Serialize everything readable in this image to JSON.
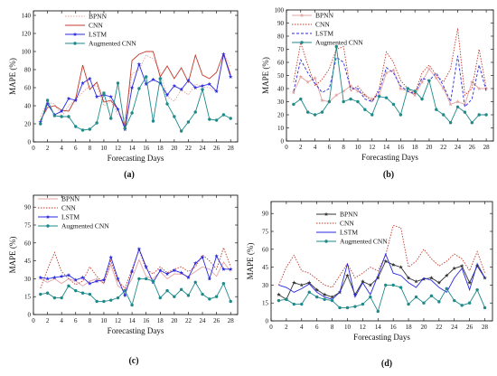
{
  "colors": {
    "BPNN": "#e3a3a3",
    "CNN": "#c0392b",
    "LSTM": "#2a2ae0",
    "Augmented CNN": "#1f8a8a",
    "BPNN_d": "#333333"
  },
  "chart_data": [
    {
      "type": "line",
      "panel": "(a)",
      "xlabel": "Forecasting Days",
      "ylabel": "MAPE (%)",
      "xlim": [
        0,
        29
      ],
      "ylim": [
        0,
        145
      ],
      "xticks": [
        0,
        2,
        4,
        6,
        8,
        10,
        12,
        14,
        16,
        18,
        20,
        22,
        24,
        26,
        28
      ],
      "yticks": [
        0,
        20,
        40,
        60,
        80,
        100,
        120,
        140
      ],
      "legend": "top-left",
      "series": [
        {
          "name": "BPNN",
          "style": "dotted",
          "marker": "none",
          "values": [
            28,
            44,
            42,
            28,
            40,
            47,
            55,
            62,
            62,
            40,
            45,
            30,
            25,
            75,
            80,
            96,
            92,
            78,
            50,
            45,
            58,
            52,
            64,
            61,
            60,
            55,
            97,
            84
          ]
        },
        {
          "name": "CNN",
          "style": "solid",
          "marker": "none",
          "values": [
            24,
            38,
            40,
            35,
            34,
            48,
            85,
            58,
            66,
            44,
            46,
            36,
            16,
            90,
            97,
            100,
            100,
            72,
            84,
            70,
            82,
            66,
            96,
            74,
            70,
            77,
            98,
            74
          ]
        },
        {
          "name": "LSTM",
          "style": "solid",
          "marker": "star",
          "values": [
            22,
            42,
            30,
            34,
            48,
            46,
            65,
            70,
            50,
            52,
            50,
            36,
            14,
            60,
            86,
            64,
            69,
            65,
            52,
            62,
            58,
            68,
            60,
            62,
            64,
            56,
            97,
            72
          ]
        },
        {
          "name": "Augmented CNN",
          "style": "solid",
          "marker": "circle",
          "values": [
            20,
            46,
            29,
            28,
            28,
            17,
            13,
            14,
            21,
            54,
            26,
            65,
            15,
            32,
            59,
            72,
            23,
            70,
            42,
            28,
            12,
            22,
            33,
            58,
            25,
            24,
            30,
            26
          ]
        }
      ],
      "x": [
        1,
        2,
        3,
        4,
        5,
        6,
        7,
        8,
        9,
        10,
        11,
        12,
        13,
        14,
        15,
        16,
        17,
        18,
        19,
        20,
        21,
        22,
        23,
        24,
        25,
        26,
        27,
        28
      ]
    },
    {
      "type": "line",
      "panel": "(b)",
      "xlabel": "Forecasting Days",
      "ylabel": "MAPE (%)",
      "xlim": [
        0,
        29
      ],
      "ylim": [
        0,
        100
      ],
      "xticks": [
        0,
        2,
        4,
        6,
        8,
        10,
        12,
        14,
        16,
        18,
        20,
        22,
        24,
        26,
        28
      ],
      "yticks": [
        0,
        10,
        20,
        30,
        40,
        50,
        60,
        70,
        80,
        90,
        100
      ],
      "legend": "top-left",
      "series": [
        {
          "name": "BPNN",
          "style": "solid",
          "marker": "star",
          "values": [
            37,
            49,
            45,
            48,
            31,
            30,
            35,
            38,
            42,
            38,
            35,
            32,
            35,
            52,
            54,
            40,
            38,
            35,
            45,
            55,
            48,
            40,
            28,
            30,
            28,
            45,
            40,
            40
          ]
        },
        {
          "name": "CNN",
          "style": "dotted",
          "marker": "none",
          "values": [
            45,
            75,
            58,
            42,
            47,
            55,
            70,
            72,
            38,
            42,
            35,
            30,
            40,
            68,
            60,
            46,
            40,
            36,
            52,
            58,
            50,
            45,
            55,
            86,
            35,
            40,
            70,
            40
          ]
        },
        {
          "name": "LSTM",
          "style": "dashed",
          "marker": "none",
          "values": [
            38,
            62,
            52,
            44,
            37,
            40,
            64,
            60,
            40,
            40,
            32,
            30,
            38,
            56,
            52,
            42,
            38,
            36,
            48,
            46,
            52,
            42,
            30,
            65,
            26,
            32,
            58,
            38
          ]
        },
        {
          "name": "Augmented CNN",
          "style": "solid",
          "marker": "circle",
          "values": [
            28,
            32,
            22,
            20,
            22,
            30,
            72,
            30,
            32,
            30,
            24,
            20,
            34,
            33,
            28,
            20,
            40,
            38,
            32,
            46,
            24,
            20,
            14,
            26,
            22,
            14,
            20,
            20
          ]
        }
      ],
      "x": [
        1,
        2,
        3,
        4,
        5,
        6,
        7,
        8,
        9,
        10,
        11,
        12,
        13,
        14,
        15,
        16,
        17,
        18,
        19,
        20,
        21,
        22,
        23,
        24,
        25,
        26,
        27,
        28
      ]
    },
    {
      "type": "line",
      "panel": "(c)",
      "xlabel": "Forecasting Days",
      "ylabel": "MAPE (%)",
      "xlim": [
        0,
        29
      ],
      "ylim": [
        0,
        100
      ],
      "xticks": [
        0,
        2,
        4,
        6,
        8,
        10,
        12,
        14,
        16,
        18,
        20,
        22,
        24,
        26,
        28
      ],
      "yticks": [
        0,
        15,
        30,
        45,
        60,
        75,
        90
      ],
      "legend": "top-left",
      "series": [
        {
          "name": "BPNN",
          "style": "solid",
          "marker": "none",
          "values": [
            30,
            27,
            30,
            26,
            30,
            28,
            24,
            28,
            30,
            26,
            42,
            24,
            20,
            30,
            46,
            32,
            30,
            36,
            30,
            34,
            34,
            32,
            36,
            40,
            38,
            32,
            44,
            36
          ]
        },
        {
          "name": "CNN",
          "style": "dotted",
          "marker": "none",
          "values": [
            22,
            38,
            52,
            36,
            30,
            25,
            28,
            40,
            32,
            26,
            45,
            28,
            22,
            38,
            54,
            38,
            34,
            40,
            35,
            38,
            40,
            36,
            40,
            50,
            45,
            38,
            56,
            40
          ]
        },
        {
          "name": "LSTM",
          "style": "solid",
          "marker": "star",
          "values": [
            31,
            30,
            31,
            32,
            33,
            29,
            31,
            26,
            28,
            29,
            48,
            30,
            16,
            36,
            55,
            40,
            27,
            37,
            34,
            37,
            35,
            31,
            43,
            48,
            30,
            49,
            38,
            38
          ]
        },
        {
          "name": "Augmented CNN",
          "style": "solid",
          "marker": "circle",
          "values": [
            17,
            18,
            14,
            14,
            24,
            20,
            18,
            17,
            11,
            11,
            12,
            14,
            20,
            8,
            30,
            30,
            28,
            14,
            20,
            15,
            21,
            16,
            27,
            17,
            13,
            15,
            26,
            11
          ]
        }
      ],
      "x": [
        1,
        2,
        3,
        4,
        5,
        6,
        7,
        8,
        9,
        10,
        11,
        12,
        13,
        14,
        15,
        16,
        17,
        18,
        19,
        20,
        21,
        22,
        23,
        24,
        25,
        26,
        27,
        28
      ]
    },
    {
      "type": "line",
      "panel": "(d)",
      "xlabel": "Forecasting Days",
      "ylabel": "MAPE (%)",
      "xlim": [
        0,
        29
      ],
      "ylim": [
        0,
        100
      ],
      "xticks": [
        0,
        2,
        4,
        6,
        8,
        10,
        12,
        14,
        16,
        18,
        20,
        22,
        24,
        26,
        28
      ],
      "yticks": [
        0,
        15,
        30,
        45,
        60,
        75,
        90
      ],
      "legend": "top-right",
      "series": [
        {
          "name": "BPNN",
          "style": "solid",
          "marker": "star",
          "values": [
            22,
            18,
            32,
            30,
            32,
            26,
            22,
            20,
            24,
            38,
            22,
            33,
            30,
            36,
            50,
            47,
            45,
            36,
            33,
            35,
            36,
            32,
            38,
            44,
            46,
            32,
            46,
            36
          ]
        },
        {
          "name": "CNN",
          "style": "dotted",
          "marker": "none",
          "values": [
            30,
            45,
            55,
            42,
            40,
            35,
            30,
            28,
            38,
            48,
            36,
            40,
            45,
            42,
            55,
            80,
            78,
            45,
            50,
            60,
            52,
            46,
            50,
            56,
            52,
            42,
            58,
            40
          ]
        },
        {
          "name": "LSTM",
          "style": "solid",
          "marker": "none",
          "values": [
            30,
            28,
            24,
            27,
            31,
            24,
            20,
            18,
            24,
            48,
            20,
            32,
            22,
            38,
            56,
            40,
            38,
            32,
            28,
            36,
            34,
            28,
            24,
            36,
            44,
            26,
            48,
            36
          ]
        },
        {
          "name": "Augmented CNN",
          "style": "solid",
          "marker": "circle",
          "values": [
            17,
            18,
            14,
            14,
            24,
            20,
            18,
            17,
            11,
            11,
            12,
            14,
            20,
            8,
            30,
            30,
            28,
            14,
            20,
            15,
            21,
            16,
            27,
            17,
            13,
            15,
            26,
            11
          ]
        }
      ],
      "x": [
        1,
        2,
        3,
        4,
        5,
        6,
        7,
        8,
        9,
        10,
        11,
        12,
        13,
        14,
        15,
        16,
        17,
        18,
        19,
        20,
        21,
        22,
        23,
        24,
        25,
        26,
        27,
        28
      ]
    }
  ]
}
